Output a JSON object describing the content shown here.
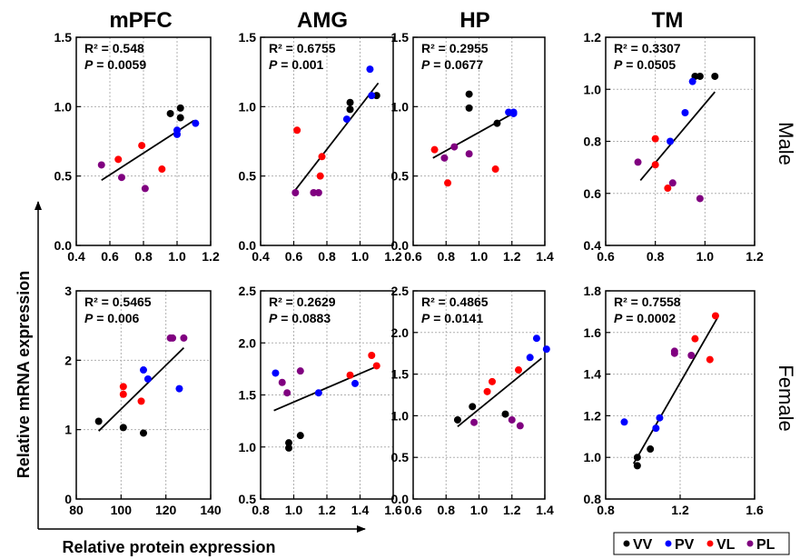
{
  "figure": {
    "y_axis_title": "Relative mRNA expression",
    "x_axis_title": "Relative protein expression",
    "column_titles": [
      "mPFC",
      "AMG",
      "HP",
      "TM"
    ],
    "row_titles": [
      "Male",
      "Female"
    ],
    "legend": [
      {
        "label": "VV",
        "color": "#000000"
      },
      {
        "label": "PV",
        "color": "#0000ff"
      },
      {
        "label": "VL",
        "color": "#ff0000"
      },
      {
        "label": "PL",
        "color": "#800080"
      }
    ]
  },
  "colors": {
    "VV": "#000000",
    "PV": "#0000ff",
    "VL": "#ff0000",
    "PL": "#800080"
  },
  "chart_data": [
    {
      "type": "scatter",
      "region": "mPFC",
      "sex": "Male",
      "stats": [
        "R² = 0.548",
        "P = 0.0059"
      ],
      "xlim": [
        0.4,
        1.2
      ],
      "xticks": [
        0.4,
        0.6,
        0.8,
        1.0,
        1.2
      ],
      "xtick_labels": [
        "0.4",
        "0.6",
        "0.8",
        "1.0",
        "1.2"
      ],
      "ylim": [
        0.0,
        1.5
      ],
      "yticks": [
        0.0,
        0.5,
        1.0,
        1.5
      ],
      "ytick_labels": [
        "0.0",
        "0.5",
        "1.0",
        "1.5"
      ],
      "trend": [
        [
          0.55,
          0.47
        ],
        [
          1.1,
          0.9
        ]
      ],
      "points": [
        {
          "g": "VV",
          "x": 0.96,
          "y": 0.95
        },
        {
          "g": "VV",
          "x": 1.02,
          "y": 0.99
        },
        {
          "g": "VV",
          "x": 1.02,
          "y": 0.92
        },
        {
          "g": "PV",
          "x": 1.0,
          "y": 0.83
        },
        {
          "g": "PV",
          "x": 1.0,
          "y": 0.8
        },
        {
          "g": "PV",
          "x": 1.11,
          "y": 0.88
        },
        {
          "g": "VL",
          "x": 0.65,
          "y": 0.62
        },
        {
          "g": "VL",
          "x": 0.79,
          "y": 0.72
        },
        {
          "g": "VL",
          "x": 0.91,
          "y": 0.55
        },
        {
          "g": "PL",
          "x": 0.55,
          "y": 0.58
        },
        {
          "g": "PL",
          "x": 0.67,
          "y": 0.49
        },
        {
          "g": "PL",
          "x": 0.81,
          "y": 0.41
        }
      ]
    },
    {
      "type": "scatter",
      "region": "AMG",
      "sex": "Male",
      "stats": [
        "R² = 0.6755",
        "P = 0.001"
      ],
      "xlim": [
        0.4,
        1.2
      ],
      "xticks": [
        0.4,
        0.6,
        0.8,
        1.0,
        1.2
      ],
      "xtick_labels": [
        "0.4",
        "0.6",
        "0.8",
        "1.0",
        "1.2"
      ],
      "ylim": [
        0.0,
        1.5
      ],
      "yticks": [
        0.0,
        0.5,
        1.0,
        1.5
      ],
      "ytick_labels": [
        "0.0",
        "0.5",
        "1.0",
        "1.5"
      ],
      "trend": [
        [
          0.61,
          0.4
        ],
        [
          1.11,
          1.17
        ]
      ],
      "points": [
        {
          "g": "VV",
          "x": 0.94,
          "y": 1.03
        },
        {
          "g": "VV",
          "x": 0.94,
          "y": 0.98
        },
        {
          "g": "VV",
          "x": 1.1,
          "y": 1.08
        },
        {
          "g": "PV",
          "x": 0.92,
          "y": 0.91
        },
        {
          "g": "PV",
          "x": 1.06,
          "y": 1.27
        },
        {
          "g": "PV",
          "x": 1.07,
          "y": 1.08
        },
        {
          "g": "VL",
          "x": 0.62,
          "y": 0.83
        },
        {
          "g": "VL",
          "x": 0.77,
          "y": 0.64
        },
        {
          "g": "VL",
          "x": 0.76,
          "y": 0.5
        },
        {
          "g": "PL",
          "x": 0.61,
          "y": 0.38
        },
        {
          "g": "PL",
          "x": 0.72,
          "y": 0.38
        },
        {
          "g": "PL",
          "x": 0.75,
          "y": 0.38
        }
      ]
    },
    {
      "type": "scatter",
      "region": "HP",
      "sex": "Male",
      "stats": [
        "R² = 0.2955",
        "P = 0.0677"
      ],
      "xlim": [
        0.6,
        1.4
      ],
      "xticks": [
        0.6,
        0.8,
        1.0,
        1.2,
        1.4
      ],
      "xtick_labels": [
        "0.6",
        "0.8",
        "1.0",
        "1.2",
        "1.4"
      ],
      "ylim": [
        0.0,
        1.5
      ],
      "yticks": [
        0.0,
        0.5,
        1.0,
        1.5
      ],
      "ytick_labels": [
        "0.0",
        "0.5",
        "1.0",
        "1.5"
      ],
      "trend": [
        [
          0.72,
          0.63
        ],
        [
          1.22,
          0.96
        ]
      ],
      "points": [
        {
          "g": "VV",
          "x": 0.94,
          "y": 1.09
        },
        {
          "g": "VV",
          "x": 0.94,
          "y": 0.99
        },
        {
          "g": "VV",
          "x": 1.11,
          "y": 0.88
        },
        {
          "g": "PV",
          "x": 1.18,
          "y": 0.96
        },
        {
          "g": "PV",
          "x": 1.21,
          "y": 0.96
        },
        {
          "g": "PV",
          "x": 1.21,
          "y": 0.95
        },
        {
          "g": "VL",
          "x": 0.73,
          "y": 0.69
        },
        {
          "g": "VL",
          "x": 0.81,
          "y": 0.45
        },
        {
          "g": "VL",
          "x": 1.1,
          "y": 0.55
        },
        {
          "g": "PL",
          "x": 0.79,
          "y": 0.63
        },
        {
          "g": "PL",
          "x": 0.85,
          "y": 0.71
        },
        {
          "g": "PL",
          "x": 0.94,
          "y": 0.66
        }
      ]
    },
    {
      "type": "scatter",
      "region": "TM",
      "sex": "Male",
      "stats": [
        "R² = 0.3307",
        "P = 0.0505"
      ],
      "xlim": [
        0.6,
        1.2
      ],
      "xticks": [
        0.6,
        0.8,
        1.0,
        1.2
      ],
      "xtick_labels": [
        "0.6",
        "0.8",
        "1.0",
        "1.2"
      ],
      "ylim": [
        0.4,
        1.2
      ],
      "yticks": [
        0.4,
        0.6,
        0.8,
        1.0,
        1.2
      ],
      "ytick_labels": [
        "0.4",
        "0.6",
        "0.8",
        "1.0",
        "1.2"
      ],
      "trend": [
        [
          0.74,
          0.65
        ],
        [
          1.04,
          0.99
        ]
      ],
      "points": [
        {
          "g": "VV",
          "x": 0.96,
          "y": 1.05
        },
        {
          "g": "VV",
          "x": 0.98,
          "y": 1.05
        },
        {
          "g": "VV",
          "x": 1.04,
          "y": 1.05
        },
        {
          "g": "PV",
          "x": 0.86,
          "y": 0.8
        },
        {
          "g": "PV",
          "x": 0.92,
          "y": 0.91
        },
        {
          "g": "PV",
          "x": 0.95,
          "y": 1.03
        },
        {
          "g": "VL",
          "x": 0.8,
          "y": 0.81
        },
        {
          "g": "VL",
          "x": 0.8,
          "y": 0.71
        },
        {
          "g": "VL",
          "x": 0.85,
          "y": 0.62
        },
        {
          "g": "PL",
          "x": 0.73,
          "y": 0.72
        },
        {
          "g": "PL",
          "x": 0.87,
          "y": 0.64
        },
        {
          "g": "PL",
          "x": 0.98,
          "y": 0.58
        }
      ]
    },
    {
      "type": "scatter",
      "region": "mPFC",
      "sex": "Female",
      "stats": [
        "R² = 0.5465",
        "P = 0.006"
      ],
      "xlim": [
        80,
        140
      ],
      "xticks": [
        80,
        100,
        120,
        140
      ],
      "xtick_labels": [
        "80",
        "100",
        "120",
        "140"
      ],
      "ylim": [
        0,
        3
      ],
      "yticks": [
        0,
        1,
        2,
        3
      ],
      "ytick_labels": [
        "0",
        "1",
        "2",
        "3"
      ],
      "trend": [
        [
          90,
          0.98
        ],
        [
          128,
          2.18
        ]
      ],
      "points": [
        {
          "g": "VV",
          "x": 90,
          "y": 1.12
        },
        {
          "g": "VV",
          "x": 101,
          "y": 1.03
        },
        {
          "g": "VV",
          "x": 110,
          "y": 0.95
        },
        {
          "g": "PV",
          "x": 110,
          "y": 1.86
        },
        {
          "g": "PV",
          "x": 112,
          "y": 1.73
        },
        {
          "g": "PV",
          "x": 126,
          "y": 1.59
        },
        {
          "g": "VL",
          "x": 101,
          "y": 1.62
        },
        {
          "g": "VL",
          "x": 101,
          "y": 1.51
        },
        {
          "g": "VL",
          "x": 109,
          "y": 1.41
        },
        {
          "g": "PL",
          "x": 122,
          "y": 2.32
        },
        {
          "g": "PL",
          "x": 123,
          "y": 2.32
        },
        {
          "g": "PL",
          "x": 128,
          "y": 2.32
        }
      ]
    },
    {
      "type": "scatter",
      "region": "AMG",
      "sex": "Female",
      "stats": [
        "R² = 0.2629",
        "P = 0.0883"
      ],
      "xlim": [
        0.8,
        1.6
      ],
      "xticks": [
        0.8,
        1.0,
        1.2,
        1.4,
        1.6
      ],
      "xtick_labels": [
        "0.8",
        "1.0",
        "1.2",
        "1.4",
        "1.6"
      ],
      "ylim": [
        0.5,
        2.5
      ],
      "yticks": [
        0.5,
        1.0,
        1.5,
        2.0,
        2.5
      ],
      "ytick_labels": [
        "0.5",
        "1.0",
        "1.5",
        "2.0",
        "2.5"
      ],
      "trend": [
        [
          0.88,
          1.35
        ],
        [
          1.51,
          1.78
        ]
      ],
      "points": [
        {
          "g": "VV",
          "x": 0.97,
          "y": 1.04
        },
        {
          "g": "VV",
          "x": 0.97,
          "y": 0.99
        },
        {
          "g": "VV",
          "x": 1.04,
          "y": 1.11
        },
        {
          "g": "PV",
          "x": 0.89,
          "y": 1.71
        },
        {
          "g": "PV",
          "x": 1.15,
          "y": 1.52
        },
        {
          "g": "PV",
          "x": 1.37,
          "y": 1.61
        },
        {
          "g": "VL",
          "x": 1.34,
          "y": 1.69
        },
        {
          "g": "VL",
          "x": 1.47,
          "y": 1.88
        },
        {
          "g": "VL",
          "x": 1.5,
          "y": 1.78
        },
        {
          "g": "PL",
          "x": 0.93,
          "y": 1.62
        },
        {
          "g": "PL",
          "x": 0.96,
          "y": 1.52
        },
        {
          "g": "PL",
          "x": 1.04,
          "y": 1.73
        }
      ]
    },
    {
      "type": "scatter",
      "region": "HP",
      "sex": "Female",
      "stats": [
        "R² = 0.4865",
        "P = 0.0141"
      ],
      "xlim": [
        0.6,
        1.4
      ],
      "xticks": [
        0.6,
        0.8,
        1.0,
        1.2,
        1.4
      ],
      "xtick_labels": [
        "0.6",
        "0.8",
        "1.0",
        "1.2",
        "1.4"
      ],
      "ylim": [
        0.0,
        2.5
      ],
      "yticks": [
        0.0,
        0.5,
        1.0,
        1.5,
        2.0,
        2.5
      ],
      "ytick_labels": [
        "0.0",
        "0.5",
        "1.0",
        "1.5",
        "2.0",
        "2.5"
      ],
      "trend": [
        [
          0.87,
          0.87
        ],
        [
          1.38,
          1.69
        ]
      ],
      "points": [
        {
          "g": "VV",
          "x": 0.87,
          "y": 0.95
        },
        {
          "g": "VV",
          "x": 0.96,
          "y": 1.11
        },
        {
          "g": "VV",
          "x": 1.16,
          "y": 1.02
        },
        {
          "g": "PV",
          "x": 1.31,
          "y": 1.7
        },
        {
          "g": "PV",
          "x": 1.35,
          "y": 1.93
        },
        {
          "g": "PV",
          "x": 1.41,
          "y": 1.8
        },
        {
          "g": "VL",
          "x": 1.05,
          "y": 1.29
        },
        {
          "g": "VL",
          "x": 1.08,
          "y": 1.41
        },
        {
          "g": "VL",
          "x": 1.24,
          "y": 1.55
        },
        {
          "g": "PL",
          "x": 0.97,
          "y": 0.92
        },
        {
          "g": "PL",
          "x": 1.2,
          "y": 0.95
        },
        {
          "g": "PL",
          "x": 1.25,
          "y": 0.88
        }
      ]
    },
    {
      "type": "scatter",
      "region": "TM",
      "sex": "Female",
      "stats": [
        "R² = 0.7558",
        "P = 0.0002"
      ],
      "xlim": [
        0.8,
        1.6
      ],
      "xticks": [
        0.8,
        1.2,
        1.6
      ],
      "xtick_labels": [
        "0.8",
        "1.2",
        "1.6"
      ],
      "ylim": [
        0.8,
        1.8
      ],
      "yticks": [
        0.8,
        1.0,
        1.2,
        1.4,
        1.6,
        1.8
      ],
      "ytick_labels": [
        "0.8",
        "1.0",
        "1.2",
        "1.4",
        "1.6",
        "1.8"
      ],
      "trend": [
        [
          0.95,
          0.97
        ],
        [
          1.4,
          1.67
        ]
      ],
      "points": [
        {
          "g": "VV",
          "x": 0.97,
          "y": 1.0
        },
        {
          "g": "VV",
          "x": 0.97,
          "y": 0.96
        },
        {
          "g": "VV",
          "x": 1.04,
          "y": 1.04
        },
        {
          "g": "PV",
          "x": 0.9,
          "y": 1.17
        },
        {
          "g": "PV",
          "x": 1.07,
          "y": 1.14
        },
        {
          "g": "PV",
          "x": 1.09,
          "y": 1.19
        },
        {
          "g": "VL",
          "x": 1.28,
          "y": 1.57
        },
        {
          "g": "VL",
          "x": 1.36,
          "y": 1.47
        },
        {
          "g": "VL",
          "x": 1.39,
          "y": 1.68
        },
        {
          "g": "PL",
          "x": 1.17,
          "y": 1.51
        },
        {
          "g": "PL",
          "x": 1.17,
          "y": 1.5
        },
        {
          "g": "PL",
          "x": 1.26,
          "y": 1.49
        }
      ]
    }
  ]
}
